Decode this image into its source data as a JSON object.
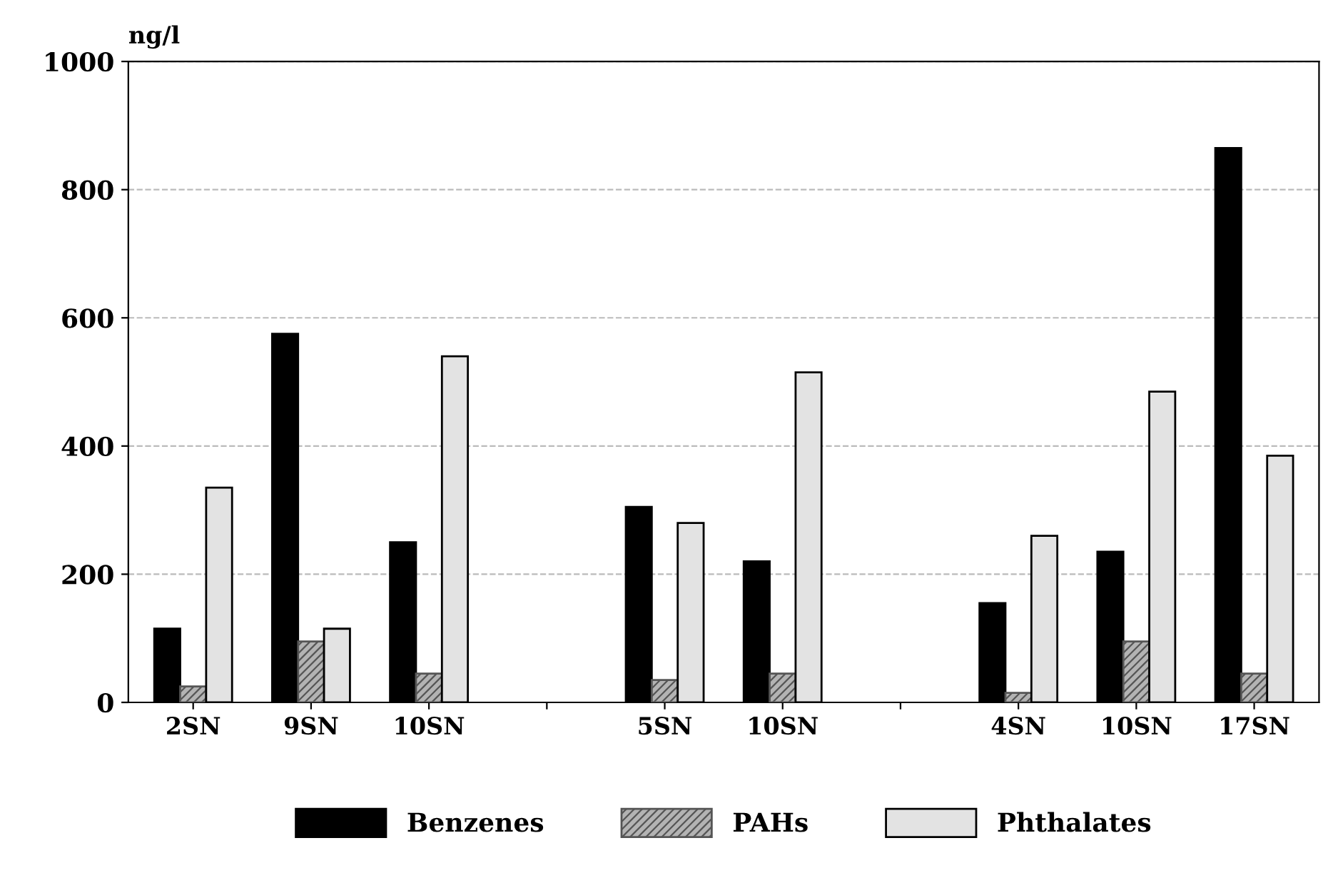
{
  "chart_data": {
    "type": "bar",
    "ylabel": "ng/l",
    "categories": [
      "2SN",
      "9SN",
      "10SN",
      null,
      "5SN",
      "10SN",
      null,
      "4SN",
      "10SN",
      "17SN"
    ],
    "series": [
      {
        "name": "Benzenes",
        "color": "#000000",
        "values": [
          115,
          575,
          250,
          null,
          305,
          220,
          null,
          155,
          235,
          865
        ]
      },
      {
        "name": "PAHs",
        "color": "#555555",
        "values": [
          25,
          95,
          45,
          null,
          35,
          45,
          null,
          15,
          95,
          45
        ]
      },
      {
        "name": "Phthalates",
        "color": "#e3e3e3",
        "values": [
          335,
          115,
          540,
          null,
          280,
          515,
          null,
          260,
          485,
          385
        ]
      }
    ],
    "ylim": [
      0,
      1000
    ],
    "yticks": [
      0,
      200,
      400,
      600,
      800,
      1000
    ],
    "grid": "y",
    "legend": "bottom"
  }
}
